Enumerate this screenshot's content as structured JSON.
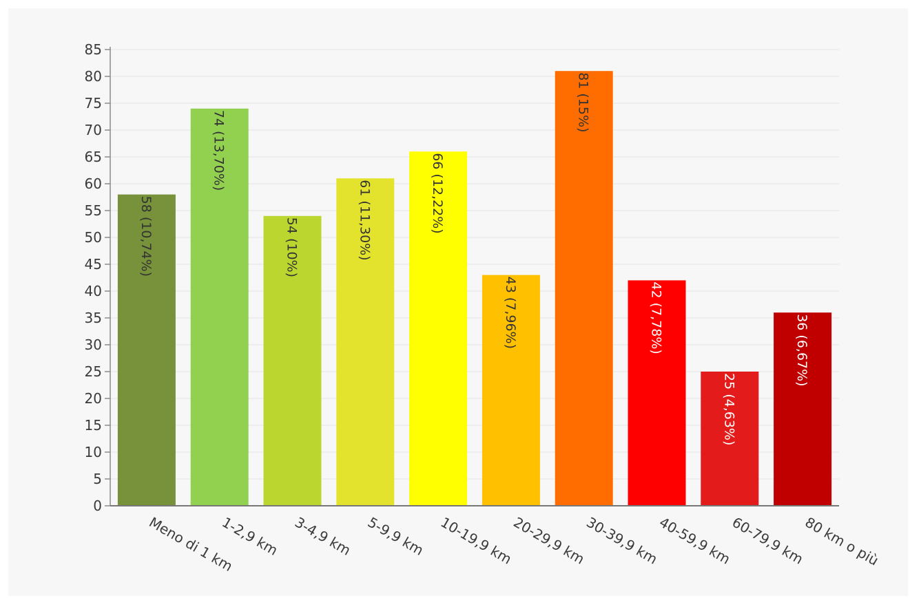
{
  "chart_data": {
    "type": "bar",
    "title": "",
    "xlabel": "",
    "ylabel": "",
    "ylim": [
      0,
      85
    ],
    "yticks": [
      0,
      5,
      10,
      15,
      20,
      25,
      30,
      35,
      40,
      45,
      50,
      55,
      60,
      65,
      70,
      75,
      80,
      85
    ],
    "grid": true,
    "categories": [
      "Meno di 1 km",
      "1-2,9 km",
      "3-4,9 km",
      "5-9,9 km",
      "10-19,9 km",
      "20-29,9 km",
      "30-39,9 km",
      "40-59,9 km",
      "60-79,9 km",
      "80 km o più"
    ],
    "values": [
      58,
      74,
      54,
      61,
      66,
      43,
      81,
      42,
      25,
      36
    ],
    "data_labels": [
      "58 (10,74%)",
      "74 (13,70%)",
      "54 (10%)",
      "61 (11,30%)",
      "66 (12,22%)",
      "43 (7,96%)",
      "81 (15%)",
      "42 (7,78%)",
      "25 (4,63%)",
      "36 (6,67%)"
    ],
    "colors": [
      "#77923a",
      "#92d050",
      "#bcd630",
      "#e3e32e",
      "#ffff00",
      "#ffc000",
      "#ff6d00",
      "#ff0000",
      "#e31b1b",
      "#c00000"
    ],
    "label_colors": [
      "#333333",
      "#333333",
      "#333333",
      "#333333",
      "#333333",
      "#333333",
      "#333333",
      "#ffffff",
      "#ffffff",
      "#ffffff"
    ]
  }
}
